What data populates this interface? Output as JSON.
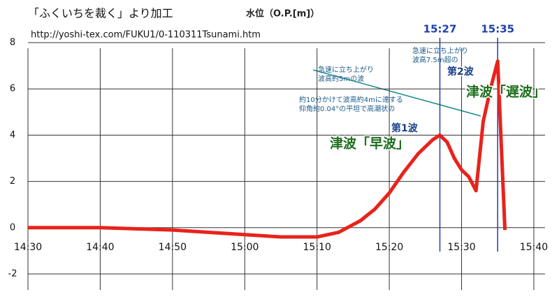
{
  "chart_data": {
    "type": "line",
    "title": "「ふくいちを裁く」より加工",
    "y_label": "水位（O.P.[m]）",
    "source": "http://yoshi-tex.com/FUKU1/0-110311Tsunami.htm",
    "x": [
      "14:30",
      "14:40",
      "14:50",
      "15:00",
      "15:05",
      "15:10",
      "15:13",
      "15:16",
      "15:18",
      "15:20",
      "15:22",
      "15:24",
      "15:26",
      "15:27",
      "15:28",
      "15:29",
      "15:30",
      "15:31",
      "15:32",
      "15:33",
      "15:34",
      "15:35",
      "15:36"
    ],
    "series": [
      {
        "name": "水位",
        "color": "#e8231b",
        "values": [
          0.0,
          0.0,
          -0.1,
          -0.3,
          -0.4,
          -0.4,
          -0.2,
          0.3,
          0.8,
          1.5,
          2.4,
          3.2,
          3.8,
          4.0,
          3.7,
          3.0,
          2.5,
          2.2,
          1.6,
          4.6,
          6.0,
          7.2,
          -0.1
        ]
      }
    ],
    "xlim": [
      "14:30",
      "15:43"
    ],
    "xticks": [
      "14:30",
      "14:40",
      "14:50",
      "15:00",
      "15:10",
      "15:20",
      "15:30",
      "15:40"
    ],
    "ylim": [
      -2,
      8
    ],
    "yticks": [
      -2,
      0,
      2,
      4,
      6,
      8
    ],
    "grid": true,
    "time_markers": [
      "15:27",
      "15:35"
    ],
    "annotations": [
      {
        "lines": [
          "急速に立ち上がり",
          "波高約5mの波"
        ]
      },
      {
        "lines": [
          "約10分かけて波高約4mに達する",
          "仰角約0.04°の平坦で高潮状の"
        ]
      },
      {
        "lines": [
          "急速に立ち上がり",
          "波高7.5m超の"
        ]
      },
      {
        "lines": [
          "第1波"
        ]
      },
      {
        "lines": [
          "第2波"
        ]
      },
      {
        "lines": [
          "津波「早波」"
        ]
      },
      {
        "lines": [
          "津波「遅波」"
        ]
      }
    ]
  }
}
